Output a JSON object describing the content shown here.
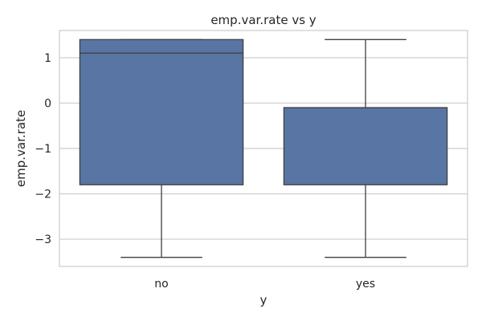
{
  "chart_data": {
    "type": "box",
    "title": "emp.var.rate vs y",
    "xlabel": "y",
    "ylabel": "emp.var.rate",
    "categories": [
      "no",
      "yes"
    ],
    "boxes": [
      {
        "category": "no",
        "whisker_low": -3.4,
        "q1": -1.8,
        "median": 1.1,
        "q3": 1.4,
        "whisker_high": 1.4
      },
      {
        "category": "yes",
        "whisker_low": -3.4,
        "q1": -1.8,
        "median": -0.1,
        "q3": -0.1,
        "whisker_high": 1.4
      }
    ],
    "ylim": [
      -3.6,
      1.6
    ],
    "yticks": [
      1,
      0,
      -1,
      -2,
      -3
    ],
    "ytick_labels": [
      "1",
      "0",
      "−1",
      "−2",
      "−3"
    ],
    "grid": "horizontal",
    "box_color": "#5875a4",
    "line_color": "#3f3f3f"
  }
}
